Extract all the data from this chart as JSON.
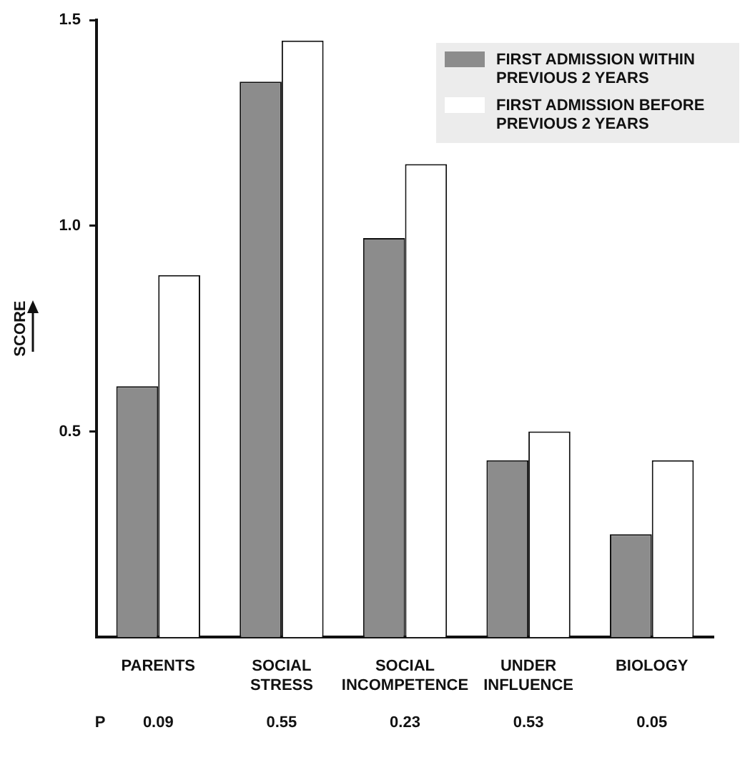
{
  "chart_data": {
    "type": "bar",
    "ylabel": "SCORE",
    "categories": [
      "PARENTS",
      "SOCIAL STRESS",
      "SOCIAL INCOMPETENCE",
      "UNDER INFLUENCE",
      "BIOLOGY"
    ],
    "series": [
      {
        "name": "FIRST ADMISSION WITHIN PREVIOUS 2 YEARS",
        "color": "#8c8c8c",
        "values": [
          0.61,
          1.35,
          0.97,
          0.43,
          0.25
        ]
      },
      {
        "name": "FIRST ADMISSION BEFORE PREVIOUS 2 YEARS",
        "color": "#ffffff",
        "values": [
          0.88,
          1.45,
          1.15,
          0.5,
          0.43
        ]
      }
    ],
    "ylim": [
      0,
      1.5
    ],
    "yticks": [
      0.5,
      {
        "value": 1,
        "label": "1.0"
      },
      1.5
    ],
    "grid": false,
    "legend": "top right",
    "annotations": [
      "P",
      "0.09",
      "0.55",
      "0.23",
      "0.53",
      "0.05"
    ]
  }
}
